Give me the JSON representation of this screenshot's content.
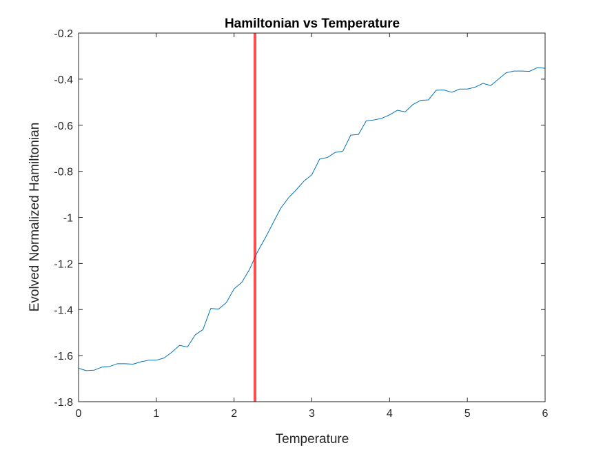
{
  "chart_data": {
    "type": "line",
    "title": "Hamiltonian vs Temperature",
    "xlabel": "Temperature",
    "ylabel": "Evolved Normalized Hamiltonian",
    "xlim": [
      0,
      6
    ],
    "ylim": [
      -1.8,
      -0.2
    ],
    "xticks": [
      "0",
      "1",
      "2",
      "3",
      "4",
      "5",
      "6"
    ],
    "yticks": [
      "-0.2",
      "-0.4",
      "-0.6",
      "-0.8",
      "-1",
      "-1.2",
      "-1.4",
      "-1.6",
      "-1.8"
    ],
    "grid": false,
    "legend": "none",
    "series": [
      {
        "color": "#0072BD",
        "x": [
          0,
          0.1,
          0.2,
          0.3,
          0.4,
          0.5,
          0.6,
          0.7,
          0.8,
          0.9,
          1.0,
          1.1,
          1.2,
          1.3,
          1.4,
          1.5,
          1.6,
          1.7,
          1.8,
          1.9,
          2.0,
          2.1,
          2.2,
          2.3,
          2.4,
          2.5,
          2.6,
          2.7,
          2.8,
          2.9,
          3.0,
          3.1,
          3.2,
          3.3,
          3.4,
          3.5,
          3.6,
          3.7,
          3.8,
          3.9,
          4.0,
          4.1,
          4.2,
          4.3,
          4.4,
          4.5,
          4.6,
          4.7,
          4.8,
          4.9,
          5.0,
          5.1,
          5.2,
          5.3,
          5.4,
          5.5,
          5.6,
          5.7,
          5.8,
          5.9,
          6.0
        ],
        "y": [
          -1.655,
          -1.665,
          -1.663,
          -1.65,
          -1.647,
          -1.635,
          -1.635,
          -1.637,
          -1.627,
          -1.62,
          -1.62,
          -1.61,
          -1.585,
          -1.555,
          -1.563,
          -1.51,
          -1.487,
          -1.395,
          -1.398,
          -1.37,
          -1.31,
          -1.282,
          -1.225,
          -1.15,
          -1.09,
          -1.025,
          -0.96,
          -0.915,
          -0.88,
          -0.842,
          -0.815,
          -0.747,
          -0.74,
          -0.718,
          -0.712,
          -0.643,
          -0.64,
          -0.581,
          -0.577,
          -0.57,
          -0.555,
          -0.535,
          -0.542,
          -0.51,
          -0.492,
          -0.49,
          -0.448,
          -0.447,
          -0.457,
          -0.443,
          -0.443,
          -0.435,
          -0.418,
          -0.428,
          -0.4,
          -0.372,
          -0.365,
          -0.365,
          -0.366,
          -0.35,
          -0.353
        ]
      }
    ],
    "annotations": [
      {
        "type": "vertical-line",
        "x": 2.269,
        "color": "#FF0000",
        "opacity": 0.7
      }
    ]
  }
}
